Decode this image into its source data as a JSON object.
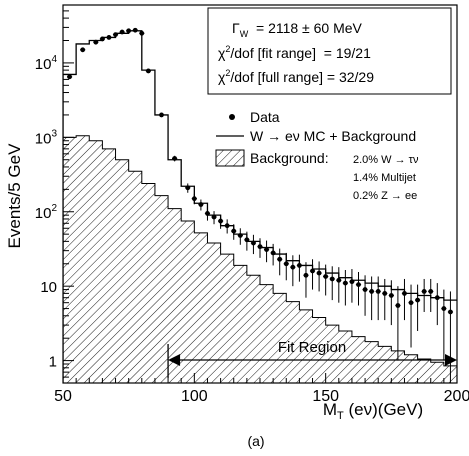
{
  "chart_data": {
    "type": "histogram",
    "ylabel": "Events/5 GeV",
    "xlabel_main": "M",
    "xlabel_sub": "T",
    "xlabel_rest": " (eν)(GeV)",
    "caption": "(a)",
    "xlim": [
      50,
      200
    ],
    "ylim": [
      0.5,
      60000
    ],
    "y_scale": "log",
    "bin_width": 2.5,
    "x_ticks": [
      50,
      100,
      150,
      200
    ],
    "y_tick_labels": [
      {
        "value": 1,
        "base": "1",
        "exp": ""
      },
      {
        "value": 10,
        "base": "10",
        "exp": ""
      },
      {
        "value": 100,
        "base": "10",
        "exp": "2"
      },
      {
        "value": 1000,
        "base": "10",
        "exp": "3"
      },
      {
        "value": 10000,
        "base": "10",
        "exp": "4"
      }
    ],
    "info_box": {
      "width_line_pre": "Γ",
      "width_line_sub": "W",
      "width_line_rest": "  = 2118 ± 60 MeV",
      "chi2_fit_pre": "χ",
      "chi2_fit_sup": "2",
      "chi2_fit_rest": "/dof [fit range]  = 19/21",
      "chi2_full_pre": "χ",
      "chi2_full_sup": "2",
      "chi2_full_rest": "/dof [full range] = 32/29"
    },
    "legend": {
      "data_label": "Data",
      "mc_label": "W → eν MC + Background",
      "bkg_label": "Background:",
      "bkg_items": [
        "2.0% W → τν",
        "1.4% Multijet",
        "0.2% Z → ee"
      ]
    },
    "fit_region": {
      "label": "Fit Region",
      "x_start": 90,
      "x_end": 200
    },
    "series": [
      {
        "name": "W → eν MC + Background",
        "style": "step",
        "x_edges": [
          50,
          55,
          60,
          65,
          70,
          75,
          80,
          85,
          90,
          95,
          100,
          105,
          110,
          115,
          120,
          125,
          130,
          135,
          140,
          145,
          150,
          155,
          160,
          165,
          170,
          175,
          180,
          185,
          190,
          195,
          200
        ],
        "values": [
          7000,
          18000,
          20000,
          22000,
          25000,
          27000,
          8000,
          2000,
          500,
          220,
          130,
          90,
          65,
          50,
          40,
          33,
          27,
          22,
          19,
          17,
          15,
          13,
          12,
          11,
          10,
          9,
          8,
          7.5,
          7,
          6.5
        ]
      },
      {
        "name": "Background",
        "style": "hatched-step",
        "x_edges": [
          50,
          55,
          60,
          65,
          70,
          75,
          80,
          85,
          90,
          95,
          100,
          105,
          110,
          115,
          120,
          125,
          130,
          135,
          140,
          145,
          150,
          155,
          160,
          165,
          170,
          175,
          180,
          185,
          190,
          195,
          200
        ],
        "values": [
          1000,
          1050,
          900,
          700,
          500,
          350,
          240,
          165,
          110,
          75,
          52,
          38,
          27,
          19,
          14,
          10.5,
          8,
          6.2,
          4.8,
          3.8,
          3.0,
          2.5,
          2.1,
          1.8,
          1.55,
          1.35,
          1.2,
          1.05,
          0.95,
          0.85
        ]
      },
      {
        "name": "Data",
        "style": "points",
        "x": [
          52.5,
          57.5,
          62.5,
          65,
          67.5,
          70,
          72.5,
          75,
          77.5,
          80,
          82.5,
          87.5,
          92.5,
          97.5,
          100,
          102.5,
          105,
          107.5,
          110,
          112.5,
          115,
          117.5,
          120,
          122.5,
          125,
          127.5,
          130,
          132.5,
          135,
          137.5,
          140,
          142.5,
          145,
          147.5,
          150,
          152.5,
          155,
          157.5,
          160,
          162.5,
          165,
          167.5,
          170,
          172.5,
          175,
          177.5,
          180,
          182.5,
          185,
          187.5,
          190,
          192.5,
          195,
          197.5
        ],
        "y": [
          6500,
          15000,
          19000,
          21000,
          22000,
          24000,
          26000,
          27000,
          27500,
          25000,
          7800,
          2000,
          520,
          210,
          150,
          125,
          95,
          85,
          75,
          65,
          55,
          48,
          42,
          38,
          34,
          31,
          28,
          23,
          20,
          18,
          19,
          14,
          16,
          15,
          13.5,
          12.5,
          12,
          11,
          11.5,
          10.5,
          9,
          8.5,
          8.5,
          8,
          7.5,
          5.5,
          8,
          6,
          6.5,
          8.5,
          8.5,
          7,
          5,
          4.5
        ],
        "y_err": [
          150,
          250,
          280,
          300,
          300,
          320,
          330,
          330,
          330,
          320,
          180,
          90,
          45,
          30,
          24,
          21,
          19,
          17,
          16,
          14,
          13,
          12,
          12,
          11,
          10,
          10,
          9,
          9,
          8,
          8,
          7.5,
          7,
          7,
          6.5,
          6,
          6,
          6,
          5.5,
          5.5,
          5,
          5,
          5,
          5,
          4.5,
          4.5,
          4.5,
          4.5,
          4.5,
          4,
          4,
          4,
          4,
          4,
          4
        ]
      }
    ]
  }
}
